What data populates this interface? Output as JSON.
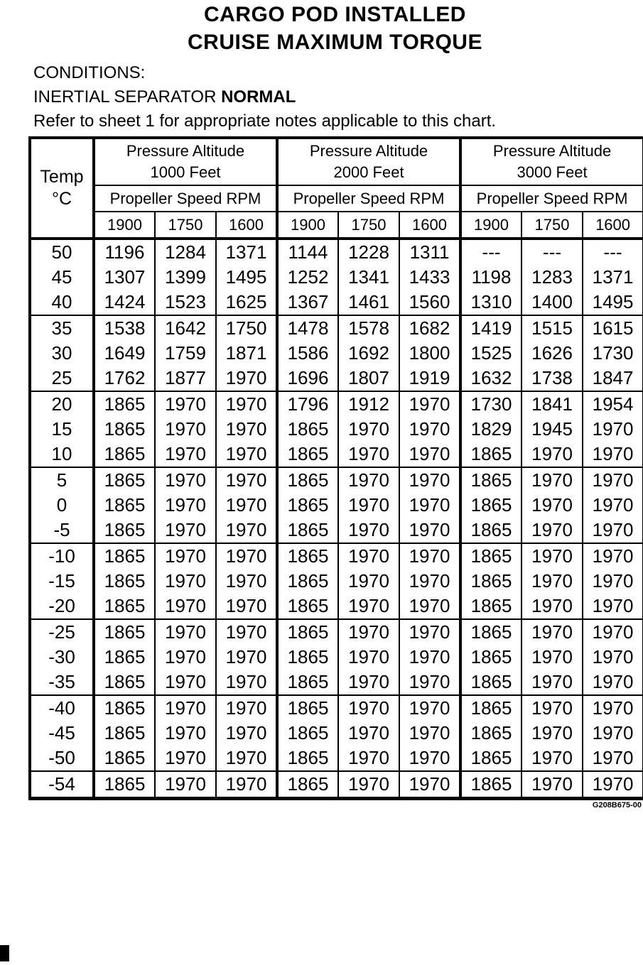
{
  "page": {
    "title_line1": "CARGO POD INSTALLED",
    "title_line2": "CRUISE MAXIMUM TORQUE",
    "conditions_heading": "CONDITIONS:",
    "condition_text": "INERTIAL SEPARATOR ",
    "condition_value": "NORMAL",
    "note": "Refer to sheet 1 for appropriate notes applicable to this chart.",
    "figure_code": "G208B675-00"
  },
  "table": {
    "temp_header_line1": "Temp",
    "temp_header_line2": "°C",
    "groups": [
      {
        "title_line1": "Pressure Altitude",
        "title_line2": "1000 Feet",
        "rpm_label": "Propeller Speed RPM",
        "rpms": [
          "1900",
          "1750",
          "1600"
        ]
      },
      {
        "title_line1": "Pressure Altitude",
        "title_line2": "2000 Feet",
        "rpm_label": "Propeller Speed RPM",
        "rpms": [
          "1900",
          "1750",
          "1600"
        ]
      },
      {
        "title_line1": "Pressure Altitude",
        "title_line2": "3000 Feet",
        "rpm_label": "Propeller Speed RPM",
        "rpms": [
          "1900",
          "1750",
          "1600"
        ]
      }
    ],
    "rows": [
      {
        "temp": "50",
        "sep": false,
        "values": [
          "1196",
          "1284",
          "1371",
          "1144",
          "1228",
          "1311",
          "---",
          "---",
          "---"
        ]
      },
      {
        "temp": "45",
        "sep": false,
        "values": [
          "1307",
          "1399",
          "1495",
          "1252",
          "1341",
          "1433",
          "1198",
          "1283",
          "1371"
        ]
      },
      {
        "temp": "40",
        "sep": false,
        "values": [
          "1424",
          "1523",
          "1625",
          "1367",
          "1461",
          "1560",
          "1310",
          "1400",
          "1495"
        ]
      },
      {
        "temp": "35",
        "sep": true,
        "values": [
          "1538",
          "1642",
          "1750",
          "1478",
          "1578",
          "1682",
          "1419",
          "1515",
          "1615"
        ]
      },
      {
        "temp": "30",
        "sep": false,
        "values": [
          "1649",
          "1759",
          "1871",
          "1586",
          "1692",
          "1800",
          "1525",
          "1626",
          "1730"
        ]
      },
      {
        "temp": "25",
        "sep": false,
        "values": [
          "1762",
          "1877",
          "1970",
          "1696",
          "1807",
          "1919",
          "1632",
          "1738",
          "1847"
        ]
      },
      {
        "temp": "20",
        "sep": true,
        "values": [
          "1865",
          "1970",
          "1970",
          "1796",
          "1912",
          "1970",
          "1730",
          "1841",
          "1954"
        ]
      },
      {
        "temp": "15",
        "sep": false,
        "values": [
          "1865",
          "1970",
          "1970",
          "1865",
          "1970",
          "1970",
          "1829",
          "1945",
          "1970"
        ]
      },
      {
        "temp": "10",
        "sep": false,
        "values": [
          "1865",
          "1970",
          "1970",
          "1865",
          "1970",
          "1970",
          "1865",
          "1970",
          "1970"
        ]
      },
      {
        "temp": "5",
        "sep": true,
        "values": [
          "1865",
          "1970",
          "1970",
          "1865",
          "1970",
          "1970",
          "1865",
          "1970",
          "1970"
        ]
      },
      {
        "temp": "0",
        "sep": false,
        "values": [
          "1865",
          "1970",
          "1970",
          "1865",
          "1970",
          "1970",
          "1865",
          "1970",
          "1970"
        ]
      },
      {
        "temp": "-5",
        "sep": false,
        "values": [
          "1865",
          "1970",
          "1970",
          "1865",
          "1970",
          "1970",
          "1865",
          "1970",
          "1970"
        ]
      },
      {
        "temp": "-10",
        "sep": true,
        "values": [
          "1865",
          "1970",
          "1970",
          "1865",
          "1970",
          "1970",
          "1865",
          "1970",
          "1970"
        ]
      },
      {
        "temp": "-15",
        "sep": false,
        "values": [
          "1865",
          "1970",
          "1970",
          "1865",
          "1970",
          "1970",
          "1865",
          "1970",
          "1970"
        ]
      },
      {
        "temp": "-20",
        "sep": false,
        "values": [
          "1865",
          "1970",
          "1970",
          "1865",
          "1970",
          "1970",
          "1865",
          "1970",
          "1970"
        ]
      },
      {
        "temp": "-25",
        "sep": true,
        "values": [
          "1865",
          "1970",
          "1970",
          "1865",
          "1970",
          "1970",
          "1865",
          "1970",
          "1970"
        ]
      },
      {
        "temp": "-30",
        "sep": false,
        "values": [
          "1865",
          "1970",
          "1970",
          "1865",
          "1970",
          "1970",
          "1865",
          "1970",
          "1970"
        ]
      },
      {
        "temp": "-35",
        "sep": false,
        "values": [
          "1865",
          "1970",
          "1970",
          "1865",
          "1970",
          "1970",
          "1865",
          "1970",
          "1970"
        ]
      },
      {
        "temp": "-40",
        "sep": true,
        "values": [
          "1865",
          "1970",
          "1970",
          "1865",
          "1970",
          "1970",
          "1865",
          "1970",
          "1970"
        ]
      },
      {
        "temp": "-45",
        "sep": false,
        "values": [
          "1865",
          "1970",
          "1970",
          "1865",
          "1970",
          "1970",
          "1865",
          "1970",
          "1970"
        ]
      },
      {
        "temp": "-50",
        "sep": false,
        "values": [
          "1865",
          "1970",
          "1970",
          "1865",
          "1970",
          "1970",
          "1865",
          "1970",
          "1970"
        ]
      },
      {
        "temp": "-54",
        "sep": true,
        "values": [
          "1865",
          "1970",
          "1970",
          "1865",
          "1970",
          "1970",
          "1865",
          "1970",
          "1970"
        ]
      }
    ]
  }
}
